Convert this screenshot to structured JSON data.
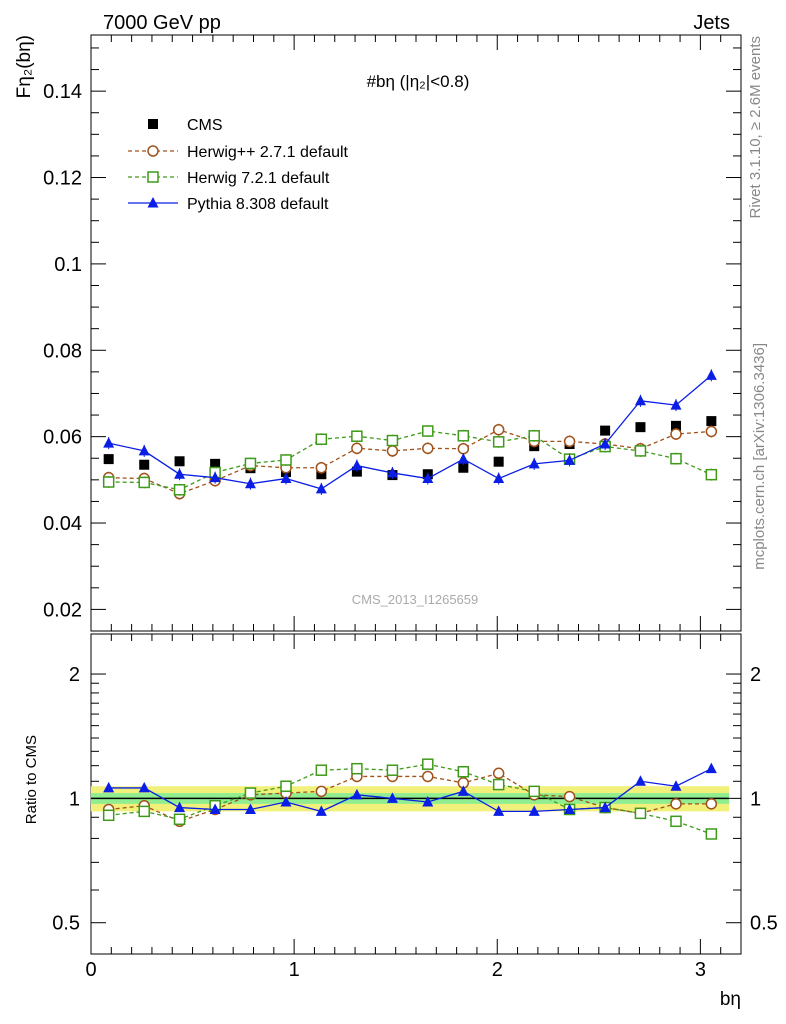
{
  "header": {
    "left": "7000 GeV pp",
    "right": "Jets"
  },
  "side_text": {
    "rivet": "Rivet 3.1.10, ≥ 2.6M events",
    "mcplots": "mcplots.cern.ch [arXiv:1306.3436]"
  },
  "watermark": "CMS_2013_I1265659",
  "main_title": "#bη (|η₂|<0.8)",
  "ylabel_main": "Fη₂(bη)",
  "ylabel_ratio": "Ratio to CMS",
  "xlabel": "bη",
  "colors": {
    "cms": "#000000",
    "herwigpp": "#a0521a",
    "herwig7": "#3f9a1a",
    "pythia": "#0a1ee6",
    "band_inner": "#90ee90",
    "band_outer": "#f0f07a"
  },
  "chart_data": [
    {
      "type": "scatter",
      "title": "#bη (|η₂|<0.8)",
      "xlabel": "bη",
      "ylabel": "Fη₂(bη)",
      "xlim": [
        0,
        3.2
      ],
      "ylim": [
        0.015,
        0.153
      ],
      "x_ticks": [
        0,
        1,
        2,
        3
      ],
      "y_ticks": [
        0.02,
        0.04,
        0.06,
        0.08,
        0.1,
        0.12,
        0.14
      ],
      "legend_position": "top-left",
      "x": [
        0.087,
        0.262,
        0.436,
        0.611,
        0.785,
        0.96,
        1.134,
        1.309,
        1.484,
        1.658,
        1.833,
        2.007,
        2.182,
        2.356,
        2.531,
        2.705,
        2.88,
        3.054
      ],
      "series": [
        {
          "name": "CMS",
          "marker": "filled-square",
          "values": [
            0.0548,
            0.0535,
            0.0543,
            0.0537,
            0.0527,
            0.0518,
            0.0513,
            0.0519,
            0.0511,
            0.0513,
            0.0528,
            0.0542,
            0.0578,
            0.0583,
            0.0614,
            0.0622,
            0.0625,
            0.0636
          ]
        },
        {
          "name": "Herwig++ 2.7.1 default",
          "marker": "open-circle",
          "values": [
            0.0505,
            0.0503,
            0.0468,
            0.0498,
            0.0533,
            0.0528,
            0.0528,
            0.0573,
            0.0567,
            0.0573,
            0.0572,
            0.0616,
            0.0589,
            0.0589,
            0.0583,
            0.0572,
            0.0606,
            0.0612
          ]
        },
        {
          "name": "Herwig 7.2.1 default",
          "marker": "open-square",
          "values": [
            0.0495,
            0.0494,
            0.0477,
            0.0517,
            0.0538,
            0.0546,
            0.0594,
            0.0601,
            0.0591,
            0.0613,
            0.0602,
            0.0588,
            0.0602,
            0.0548,
            0.0577,
            0.0567,
            0.0549,
            0.0512
          ]
        },
        {
          "name": "Pythia 8.308 default",
          "marker": "filled-triangle",
          "values": [
            0.0585,
            0.0567,
            0.0513,
            0.0505,
            0.0491,
            0.0503,
            0.0479,
            0.0533,
            0.0516,
            0.0503,
            0.0548,
            0.0503,
            0.0537,
            0.0545,
            0.0583,
            0.0683,
            0.0673,
            0.0742
          ]
        }
      ]
    },
    {
      "type": "scatter",
      "ylabel": "Ratio to CMS",
      "xlabel": "bη",
      "xlim": [
        0,
        3.2
      ],
      "ylim": [
        0.42,
        2.5
      ],
      "log_y": true,
      "y_ticks": [
        0.5,
        1,
        2
      ],
      "x": [
        0.087,
        0.262,
        0.436,
        0.611,
        0.785,
        0.96,
        1.134,
        1.309,
        1.484,
        1.658,
        1.833,
        2.007,
        2.182,
        2.356,
        2.531,
        2.705,
        2.88,
        3.054
      ],
      "series": [
        {
          "name": "Herwig++ 2.7.1 default",
          "values": [
            0.94,
            0.96,
            0.88,
            0.94,
            1.02,
            1.03,
            1.04,
            1.13,
            1.13,
            1.13,
            1.09,
            1.15,
            1.02,
            1.01,
            0.95,
            0.92,
            0.97,
            0.97
          ]
        },
        {
          "name": "Herwig 7.2.1 default",
          "values": [
            0.91,
            0.93,
            0.89,
            0.96,
            1.03,
            1.07,
            1.17,
            1.18,
            1.17,
            1.21,
            1.16,
            1.08,
            1.04,
            0.94,
            0.95,
            0.92,
            0.88,
            0.82
          ]
        },
        {
          "name": "Pythia 8.308 default",
          "values": [
            1.06,
            1.06,
            0.95,
            0.94,
            0.94,
            0.98,
            0.93,
            1.02,
            1.0,
            0.98,
            1.04,
            0.93,
            0.93,
            0.94,
            0.95,
            1.1,
            1.07,
            1.18
          ]
        }
      ],
      "band_inner": 0.03,
      "band_outer": 0.07
    }
  ]
}
